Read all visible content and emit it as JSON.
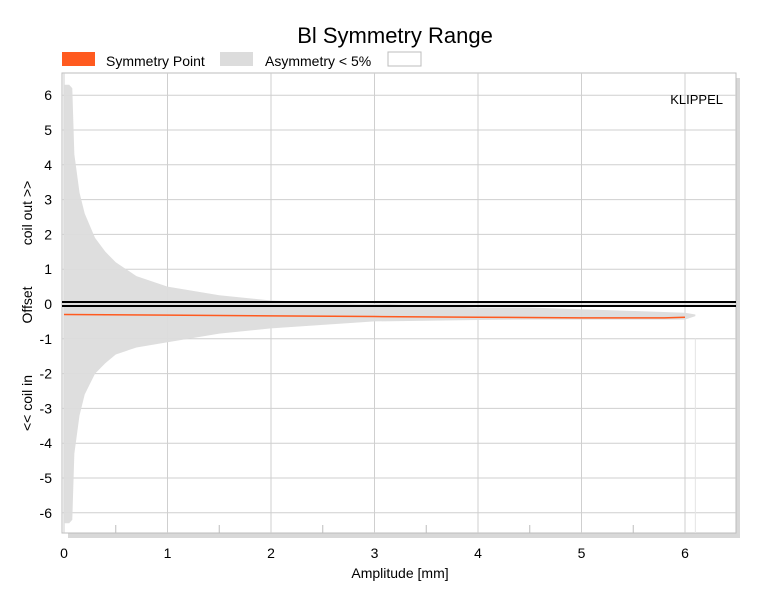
{
  "chart_data": {
    "type": "area",
    "title": "Bl Symmetry Range",
    "xlabel": "Amplitude [mm]",
    "ylabel_parts": [
      "<< coil in",
      "Offset",
      "coil out >>"
    ],
    "watermark": "KLIPPEL",
    "xlim": [
      0,
      6.5
    ],
    "ylim": [
      -6.6,
      6.6
    ],
    "x_ticks": [
      "0",
      "1",
      "2",
      "3",
      "4",
      "5",
      "6"
    ],
    "y_ticks": [
      "6",
      "5",
      "4",
      "3",
      "2",
      "1",
      "0",
      "-1",
      "-2",
      "-3",
      "-4",
      "-5",
      "-6"
    ],
    "grid": true,
    "legend": [
      {
        "label": "Symmetry Point",
        "color": "#ff5a1f",
        "kind": "fill"
      },
      {
        "label": "Asymmetry < 5%",
        "color": "#dcdcdc",
        "kind": "fill"
      },
      {
        "label": "",
        "color": "#ffffff",
        "kind": "outline"
      }
    ],
    "series": [
      {
        "name": "Symmetry Point",
        "color": "#ff5a1f",
        "x": [
          0,
          1,
          2,
          3,
          4,
          5,
          5.5,
          5.8,
          6.0
        ],
        "y": [
          -0.3,
          -0.32,
          -0.34,
          -0.36,
          -0.38,
          -0.4,
          -0.4,
          -0.4,
          -0.38
        ]
      },
      {
        "name": "Asymmetry < 5%",
        "color": "#dcdcdc",
        "x": [
          0.0,
          0.05,
          0.08,
          0.1,
          0.15,
          0.2,
          0.3,
          0.4,
          0.5,
          0.7,
          1.0,
          1.5,
          2.0,
          2.5,
          3.0,
          3.5,
          4.0,
          4.5,
          5.0,
          5.5,
          6.0,
          6.1
        ],
        "upper": [
          6.3,
          6.3,
          6.2,
          4.3,
          3.2,
          2.6,
          1.9,
          1.5,
          1.2,
          0.8,
          0.5,
          0.25,
          0.1,
          0.05,
          0.0,
          -0.05,
          -0.1,
          -0.1,
          -0.15,
          -0.2,
          -0.25,
          -0.3
        ],
        "lower": [
          -6.3,
          -6.3,
          -6.2,
          -4.3,
          -3.2,
          -2.6,
          -2.0,
          -1.7,
          -1.45,
          -1.25,
          -1.1,
          -0.85,
          -0.7,
          -0.6,
          -0.5,
          -0.48,
          -0.46,
          -0.45,
          -0.45,
          -0.45,
          -0.45,
          -0.35
        ]
      }
    ],
    "reference_line": {
      "y": 0,
      "color": "#000000"
    },
    "right_edge_x": 6.1
  }
}
